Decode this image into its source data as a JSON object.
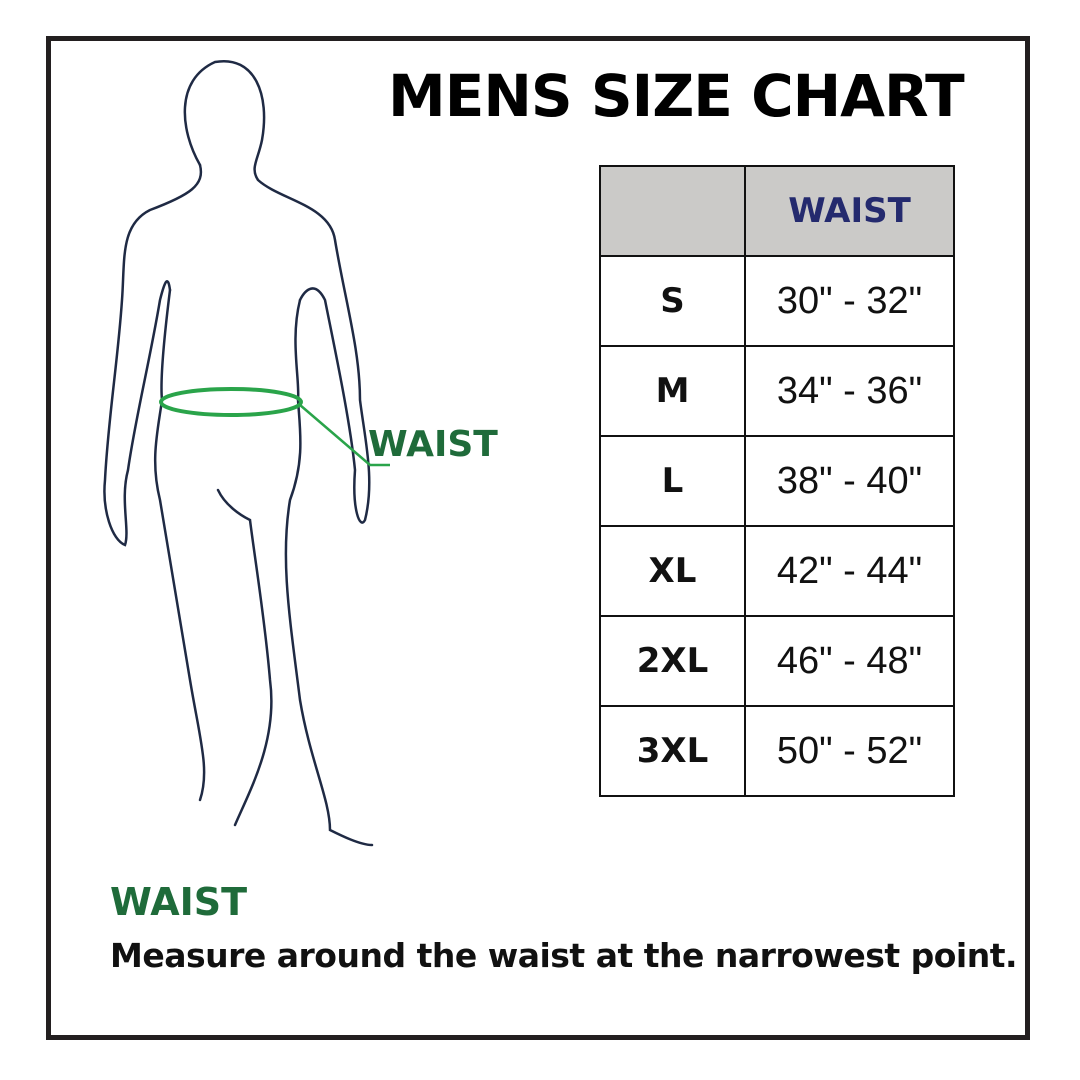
{
  "title": "MENS SIZE CHART",
  "figure": {
    "label": "WAIST",
    "measure_line_color": "#2aa44a"
  },
  "table": {
    "header": [
      "",
      "WAIST"
    ],
    "rows": [
      {
        "size": "S",
        "waist": "30\" - 32\""
      },
      {
        "size": "M",
        "waist": "34\" - 36\""
      },
      {
        "size": "L",
        "waist": "38\" - 40\""
      },
      {
        "size": "XL",
        "waist": "42\" - 44\""
      },
      {
        "size": "2XL",
        "waist": "46\" - 48\""
      },
      {
        "size": "3XL",
        "waist": "50\" - 52\""
      }
    ],
    "header_bg": "#cbcac8",
    "header_text_color": "#242a6e"
  },
  "note": {
    "title": "WAIST",
    "text": "Measure around the waist at the narrowest point.",
    "title_color": "#1f6b3a"
  }
}
